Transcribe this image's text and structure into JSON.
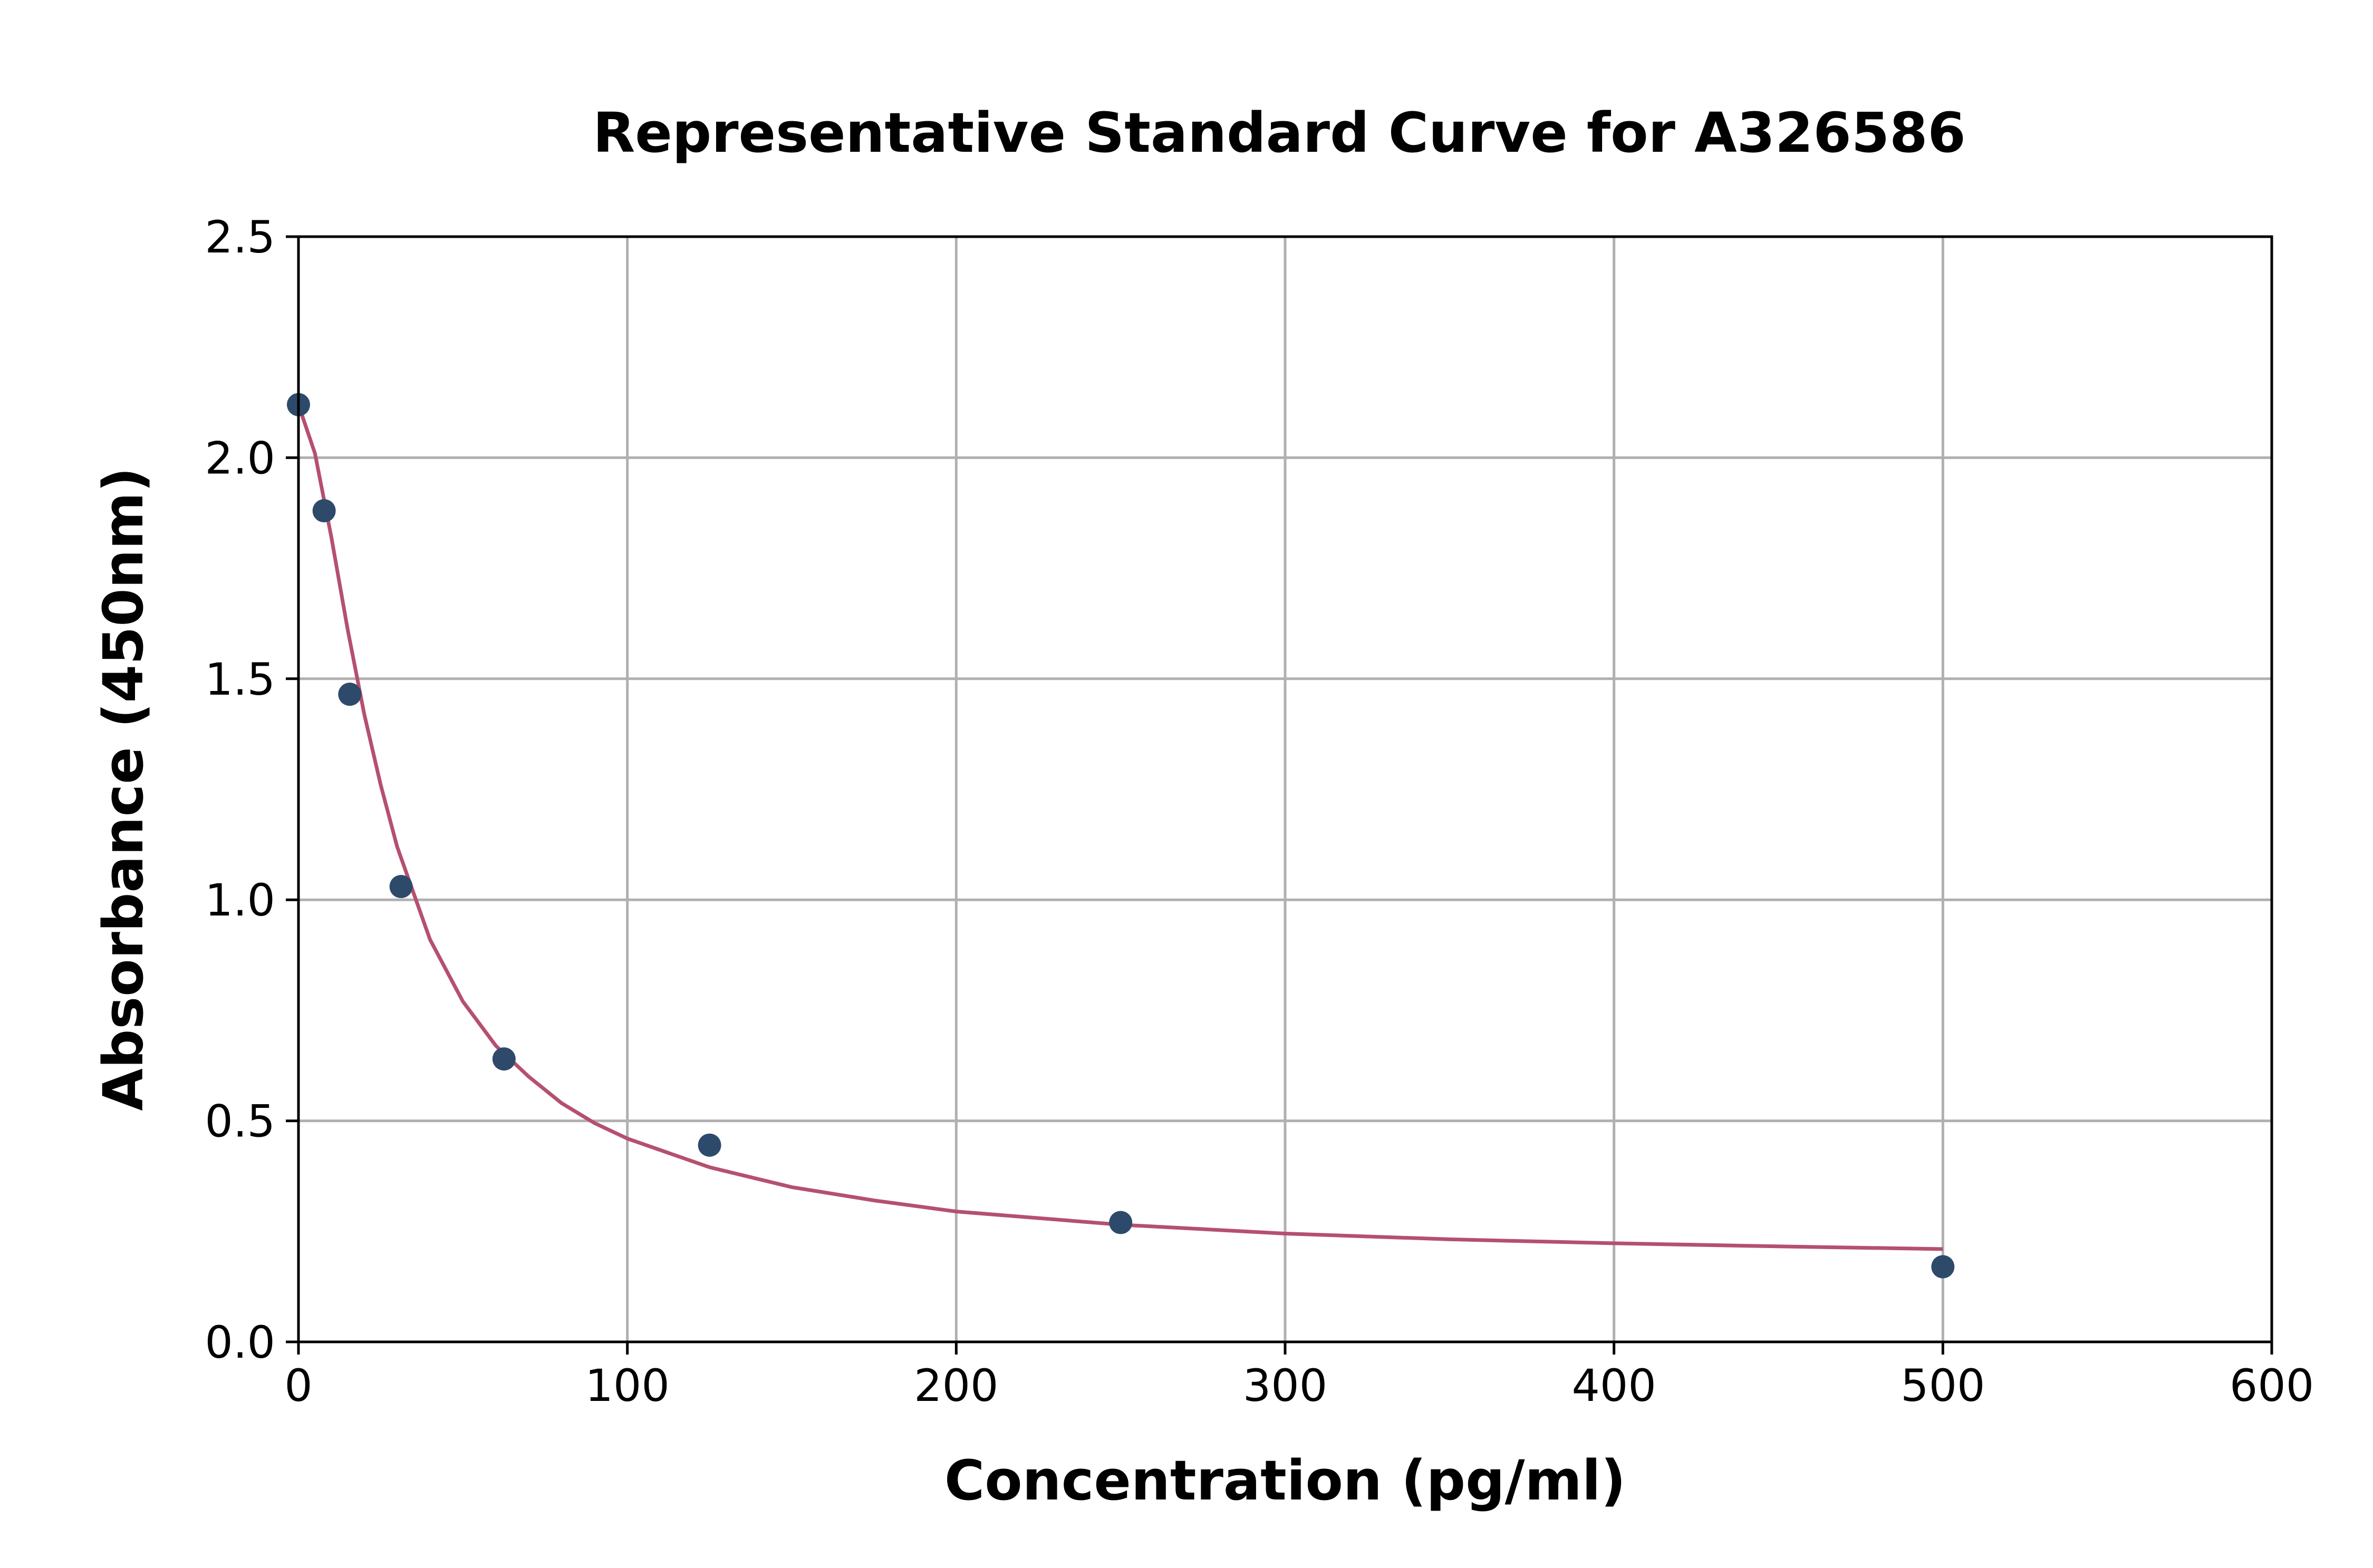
{
  "chart_data": {
    "type": "scatter",
    "title": "Representative Standard Curve for A326586",
    "xlabel": "Concentration (pg/ml)",
    "ylabel": "Absorbance (450nm)",
    "xlim": [
      0,
      600
    ],
    "ylim": [
      0,
      2.5
    ],
    "x_ticks": [
      0,
      100,
      200,
      300,
      400,
      500,
      600
    ],
    "y_ticks": [
      0.0,
      0.5,
      1.0,
      1.5,
      2.0,
      2.5
    ],
    "x_tick_labels": [
      "0",
      "100",
      "200",
      "300",
      "400",
      "500",
      "600"
    ],
    "y_tick_labels": [
      "0.0",
      "0.5",
      "1.0",
      "1.5",
      "2.0",
      "2.5"
    ],
    "grid": true,
    "series": [
      {
        "kind": "points",
        "color": "#2e4a6b",
        "x": [
          0,
          7.8,
          15.6,
          31.2,
          62.5,
          125,
          250,
          500
        ],
        "y": [
          2.12,
          1.88,
          1.465,
          1.03,
          0.64,
          0.445,
          0.27,
          0.17
        ]
      },
      {
        "kind": "fit",
        "color": "#b5506f",
        "x": [
          0,
          5,
          10,
          15,
          20,
          25,
          30,
          40,
          50,
          60,
          70,
          80,
          90,
          100,
          125,
          150,
          175,
          200,
          250,
          300,
          350,
          400,
          450,
          500
        ],
        "y": [
          2.12,
          2.01,
          1.82,
          1.61,
          1.42,
          1.26,
          1.12,
          0.91,
          0.77,
          0.67,
          0.6,
          0.54,
          0.495,
          0.46,
          0.395,
          0.35,
          0.32,
          0.295,
          0.265,
          0.245,
          0.232,
          0.223,
          0.216,
          0.21
        ]
      }
    ]
  }
}
